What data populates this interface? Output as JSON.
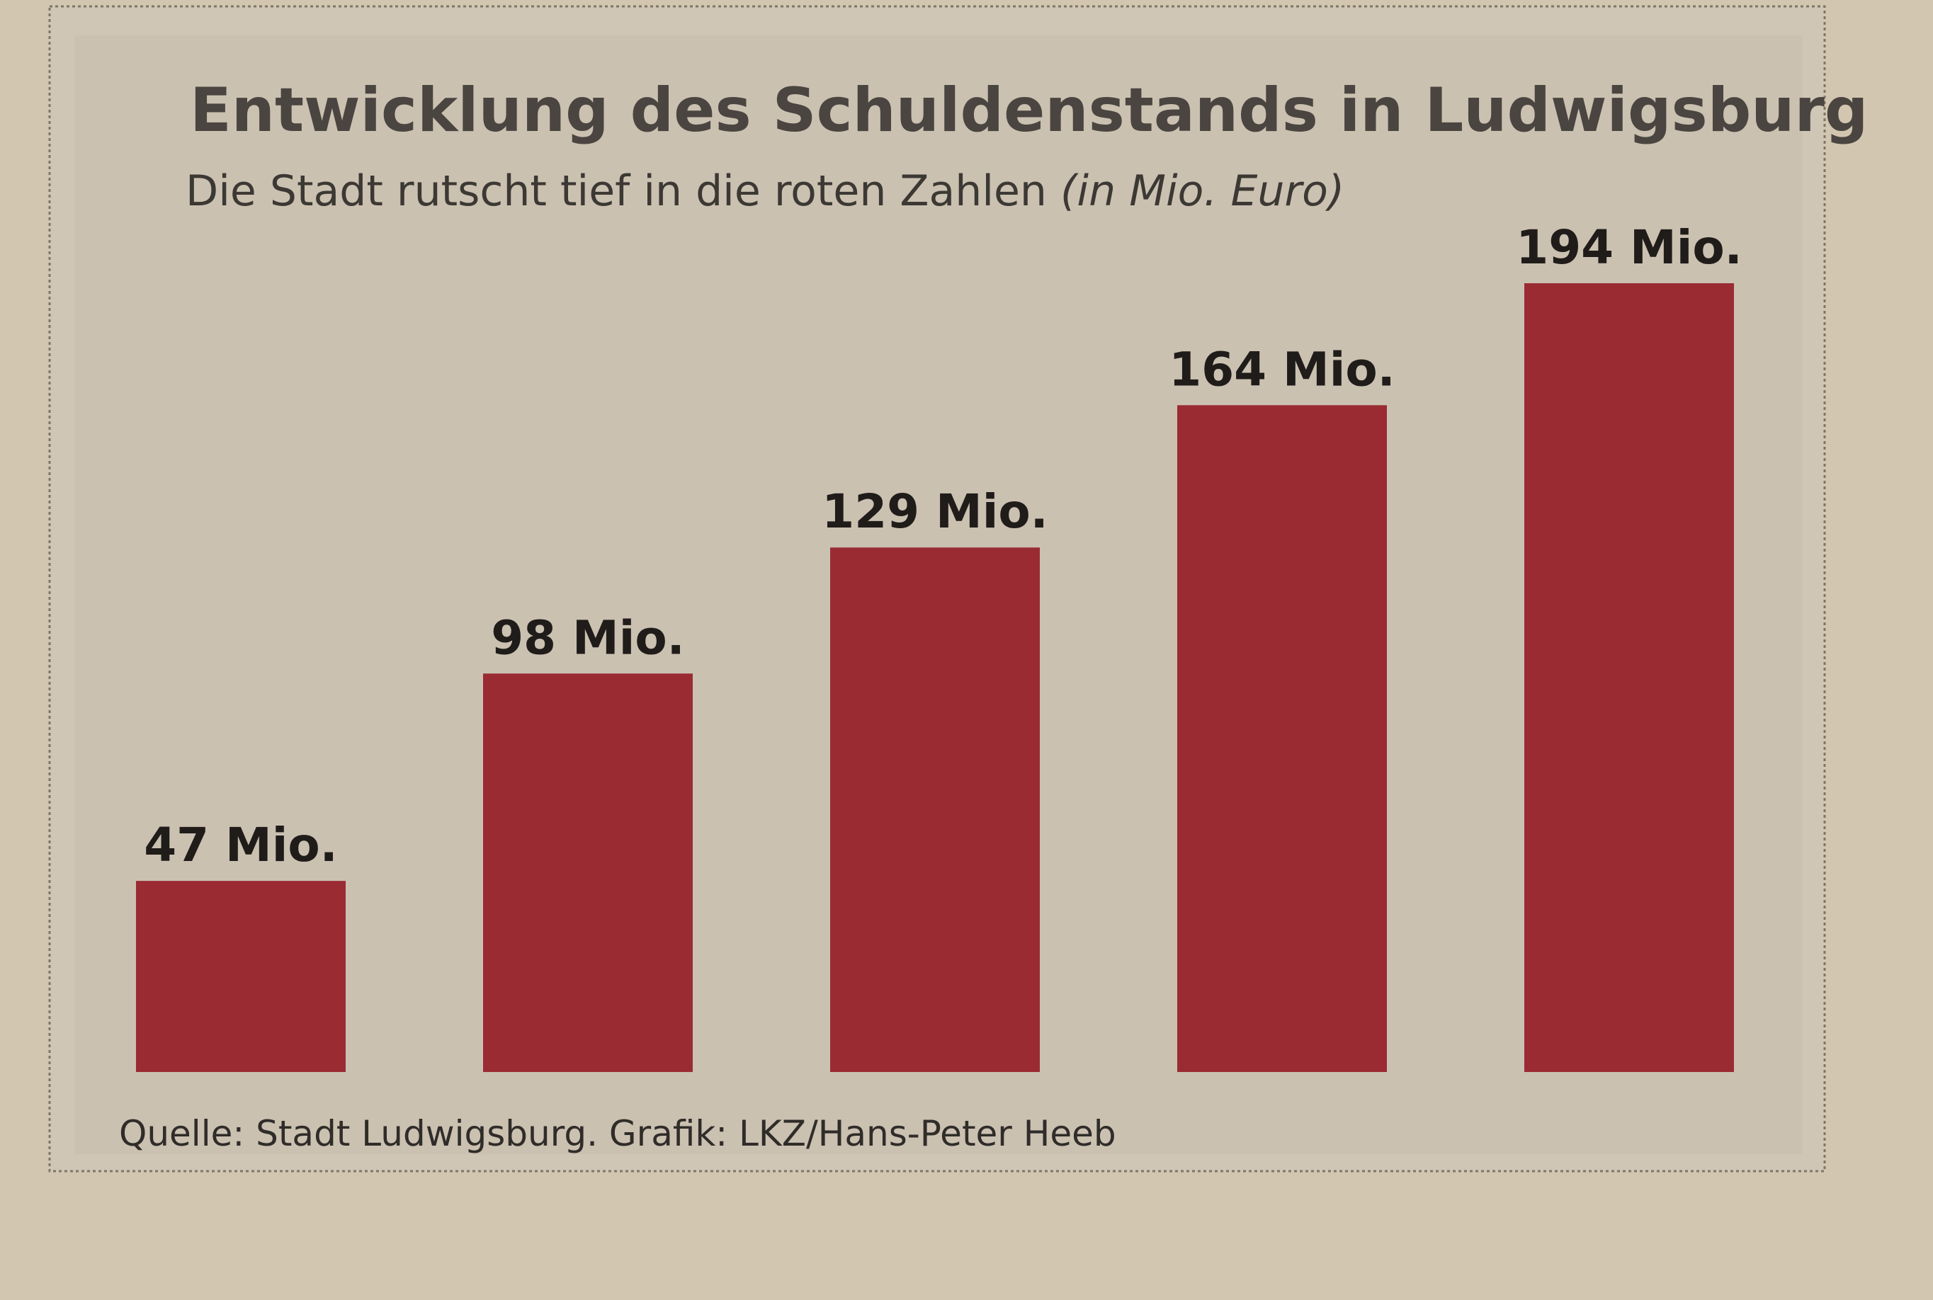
{
  "chart_data": {
    "type": "bar",
    "title": "Entwicklung des Schuldenstands in Ludwigsburg",
    "subtitle": "Die Stadt rutscht tief in die roten Zahlen",
    "unit_note": "(in Mio. Euro)",
    "source": "Quelle: Stadt Ludwigsburg. Grafik: LKZ/Hans-Peter Heeb",
    "categories": [
      null,
      null,
      null,
      null,
      null
    ],
    "values": [
      47,
      98,
      129,
      164,
      194
    ],
    "value_labels": [
      "47 Mio.",
      "98 Mio.",
      "129 Mio.",
      "164 Mio.",
      "194 Mio."
    ],
    "color": "#9a2b33"
  }
}
